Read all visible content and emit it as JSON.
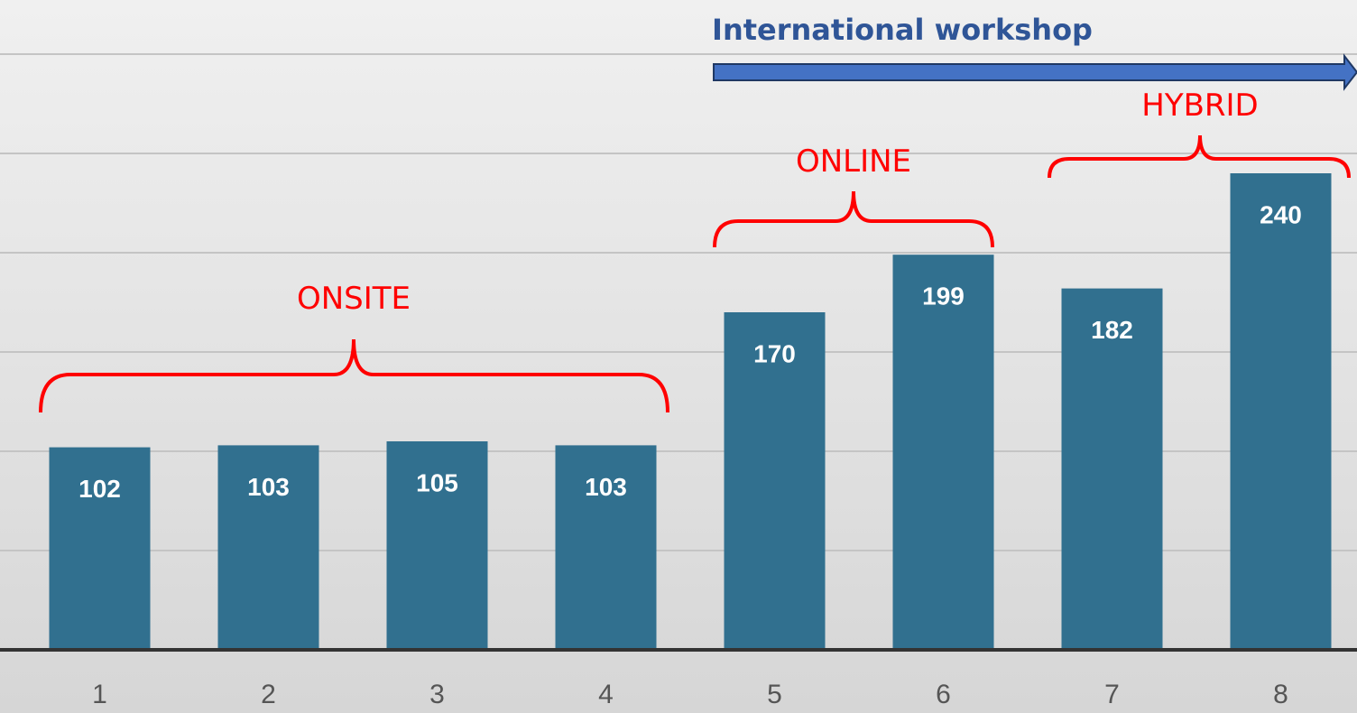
{
  "chart_data": {
    "type": "bar",
    "categories": [
      "1",
      "2",
      "3",
      "4",
      "5",
      "6",
      "7",
      "8"
    ],
    "values": [
      102,
      103,
      105,
      103,
      170,
      199,
      182,
      240
    ],
    "color": "#31708f",
    "ylim": [
      0,
      300
    ],
    "yticks": [
      0,
      50,
      100,
      150,
      200,
      250,
      300
    ],
    "grid": true,
    "annotations": {
      "workshop": "International workshop",
      "onsite": "ONSITE",
      "online": "ONLINE",
      "hybrid": "HYBRID"
    }
  }
}
